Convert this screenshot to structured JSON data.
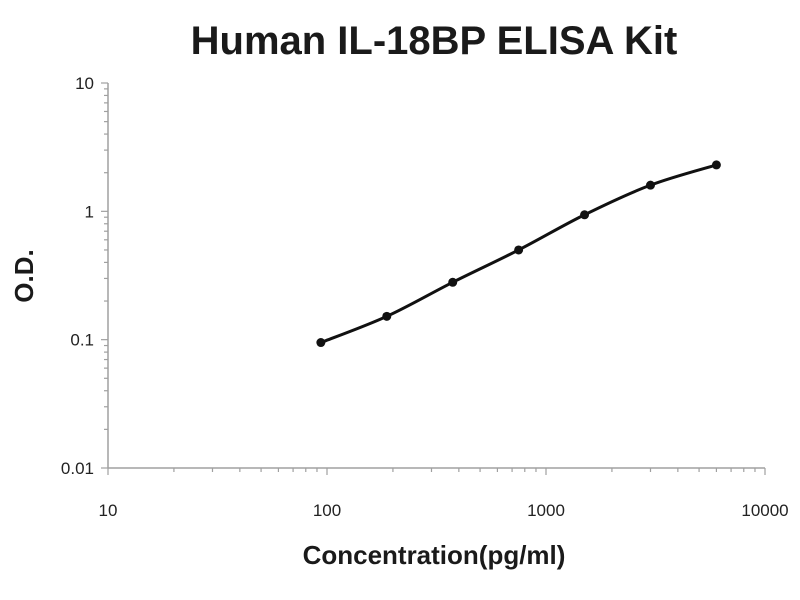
{
  "chart_data": {
    "type": "scatter",
    "title": "Human IL-18BP ELISA Kit",
    "xlabel": "Concentration(pg/ml)",
    "ylabel": "O.D.",
    "x_scale": "log",
    "y_scale": "log",
    "xlim": [
      10,
      10000
    ],
    "ylim": [
      0.01,
      10
    ],
    "x_ticks": [
      "10",
      "100",
      "1000",
      "10000"
    ],
    "y_ticks": [
      "0.01",
      "0.1",
      "1",
      "10"
    ],
    "grid": false,
    "legend": "none",
    "series": [
      {
        "points": [
          {
            "x": 93.75,
            "y": 0.095
          },
          {
            "x": 187.5,
            "y": 0.152
          },
          {
            "x": 375,
            "y": 0.28
          },
          {
            "x": 750,
            "y": 0.5
          },
          {
            "x": 1500,
            "y": 0.94
          },
          {
            "x": 3000,
            "y": 1.6
          },
          {
            "x": 6000,
            "y": 2.3
          }
        ],
        "color": "#111111",
        "line": "smooth",
        "markers": true
      }
    ]
  }
}
